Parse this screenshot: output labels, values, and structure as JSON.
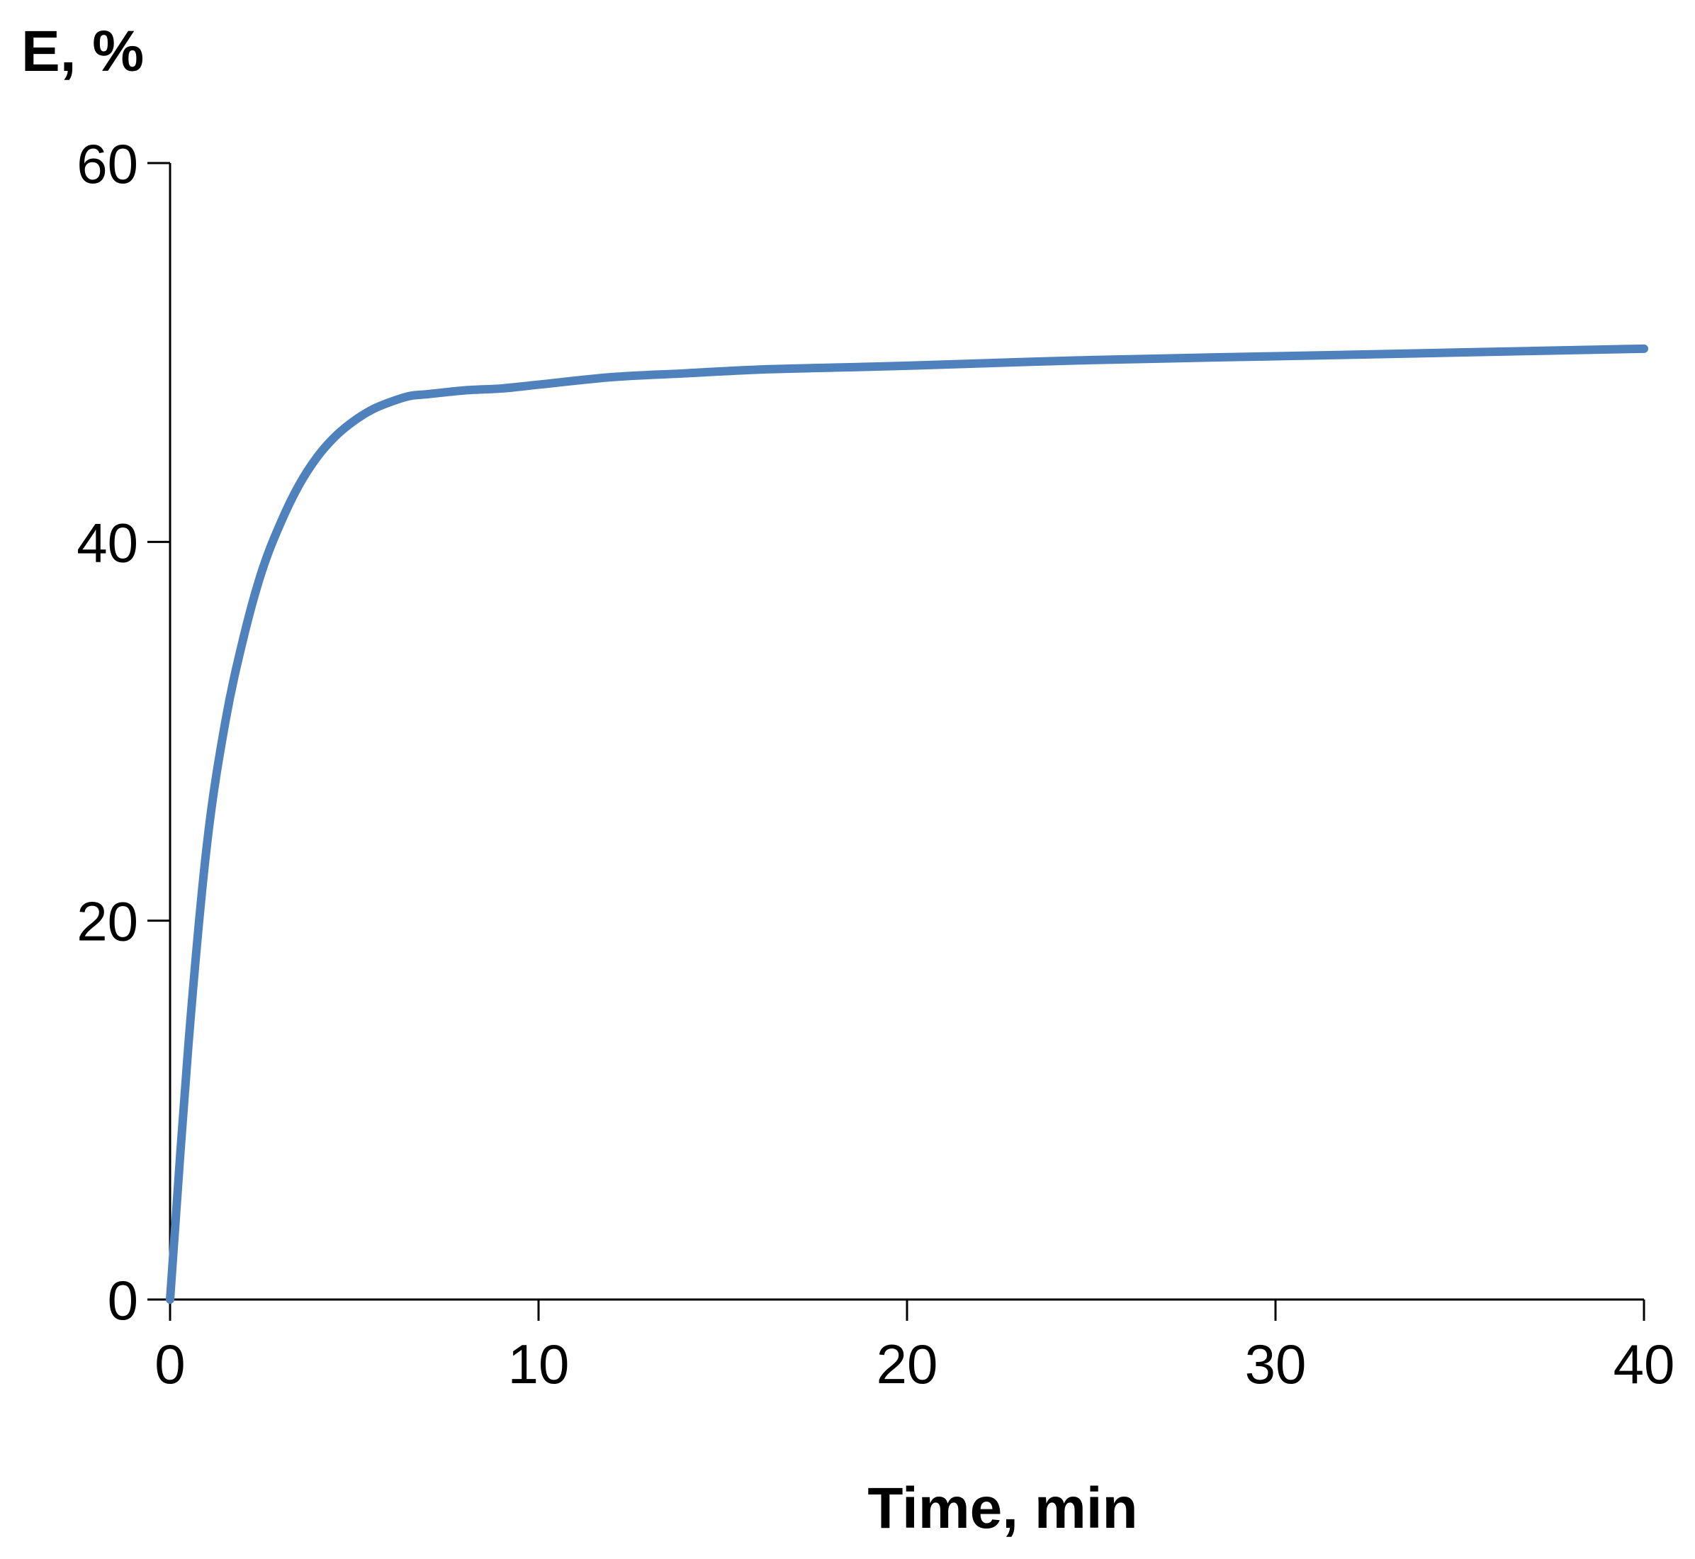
{
  "chart_data": {
    "type": "line",
    "title": "",
    "xlabel": "Time, min",
    "ylabel": "E, %",
    "xlim": [
      0,
      40
    ],
    "ylim": [
      0,
      60
    ],
    "xticks": [
      0,
      10,
      20,
      30,
      40
    ],
    "yticks": [
      0,
      20,
      40,
      60
    ],
    "grid": false,
    "series": [
      {
        "color": "#4F81BD",
        "x": [
          0,
          0.5,
          1,
          1.5,
          2,
          2.5,
          3,
          3.5,
          4,
          4.5,
          5,
          5.5,
          6,
          6.5,
          7,
          8,
          9,
          10,
          12,
          14,
          16,
          18,
          20,
          25,
          30,
          35,
          40
        ],
        "y": [
          0,
          13.5,
          24,
          30.5,
          35,
          38.5,
          41,
          43,
          44.5,
          45.6,
          46.4,
          47,
          47.4,
          47.7,
          47.8,
          48.0,
          48.1,
          48.3,
          48.7,
          48.9,
          49.1,
          49.2,
          49.3,
          49.6,
          49.8,
          50.0,
          50.2
        ]
      }
    ]
  }
}
